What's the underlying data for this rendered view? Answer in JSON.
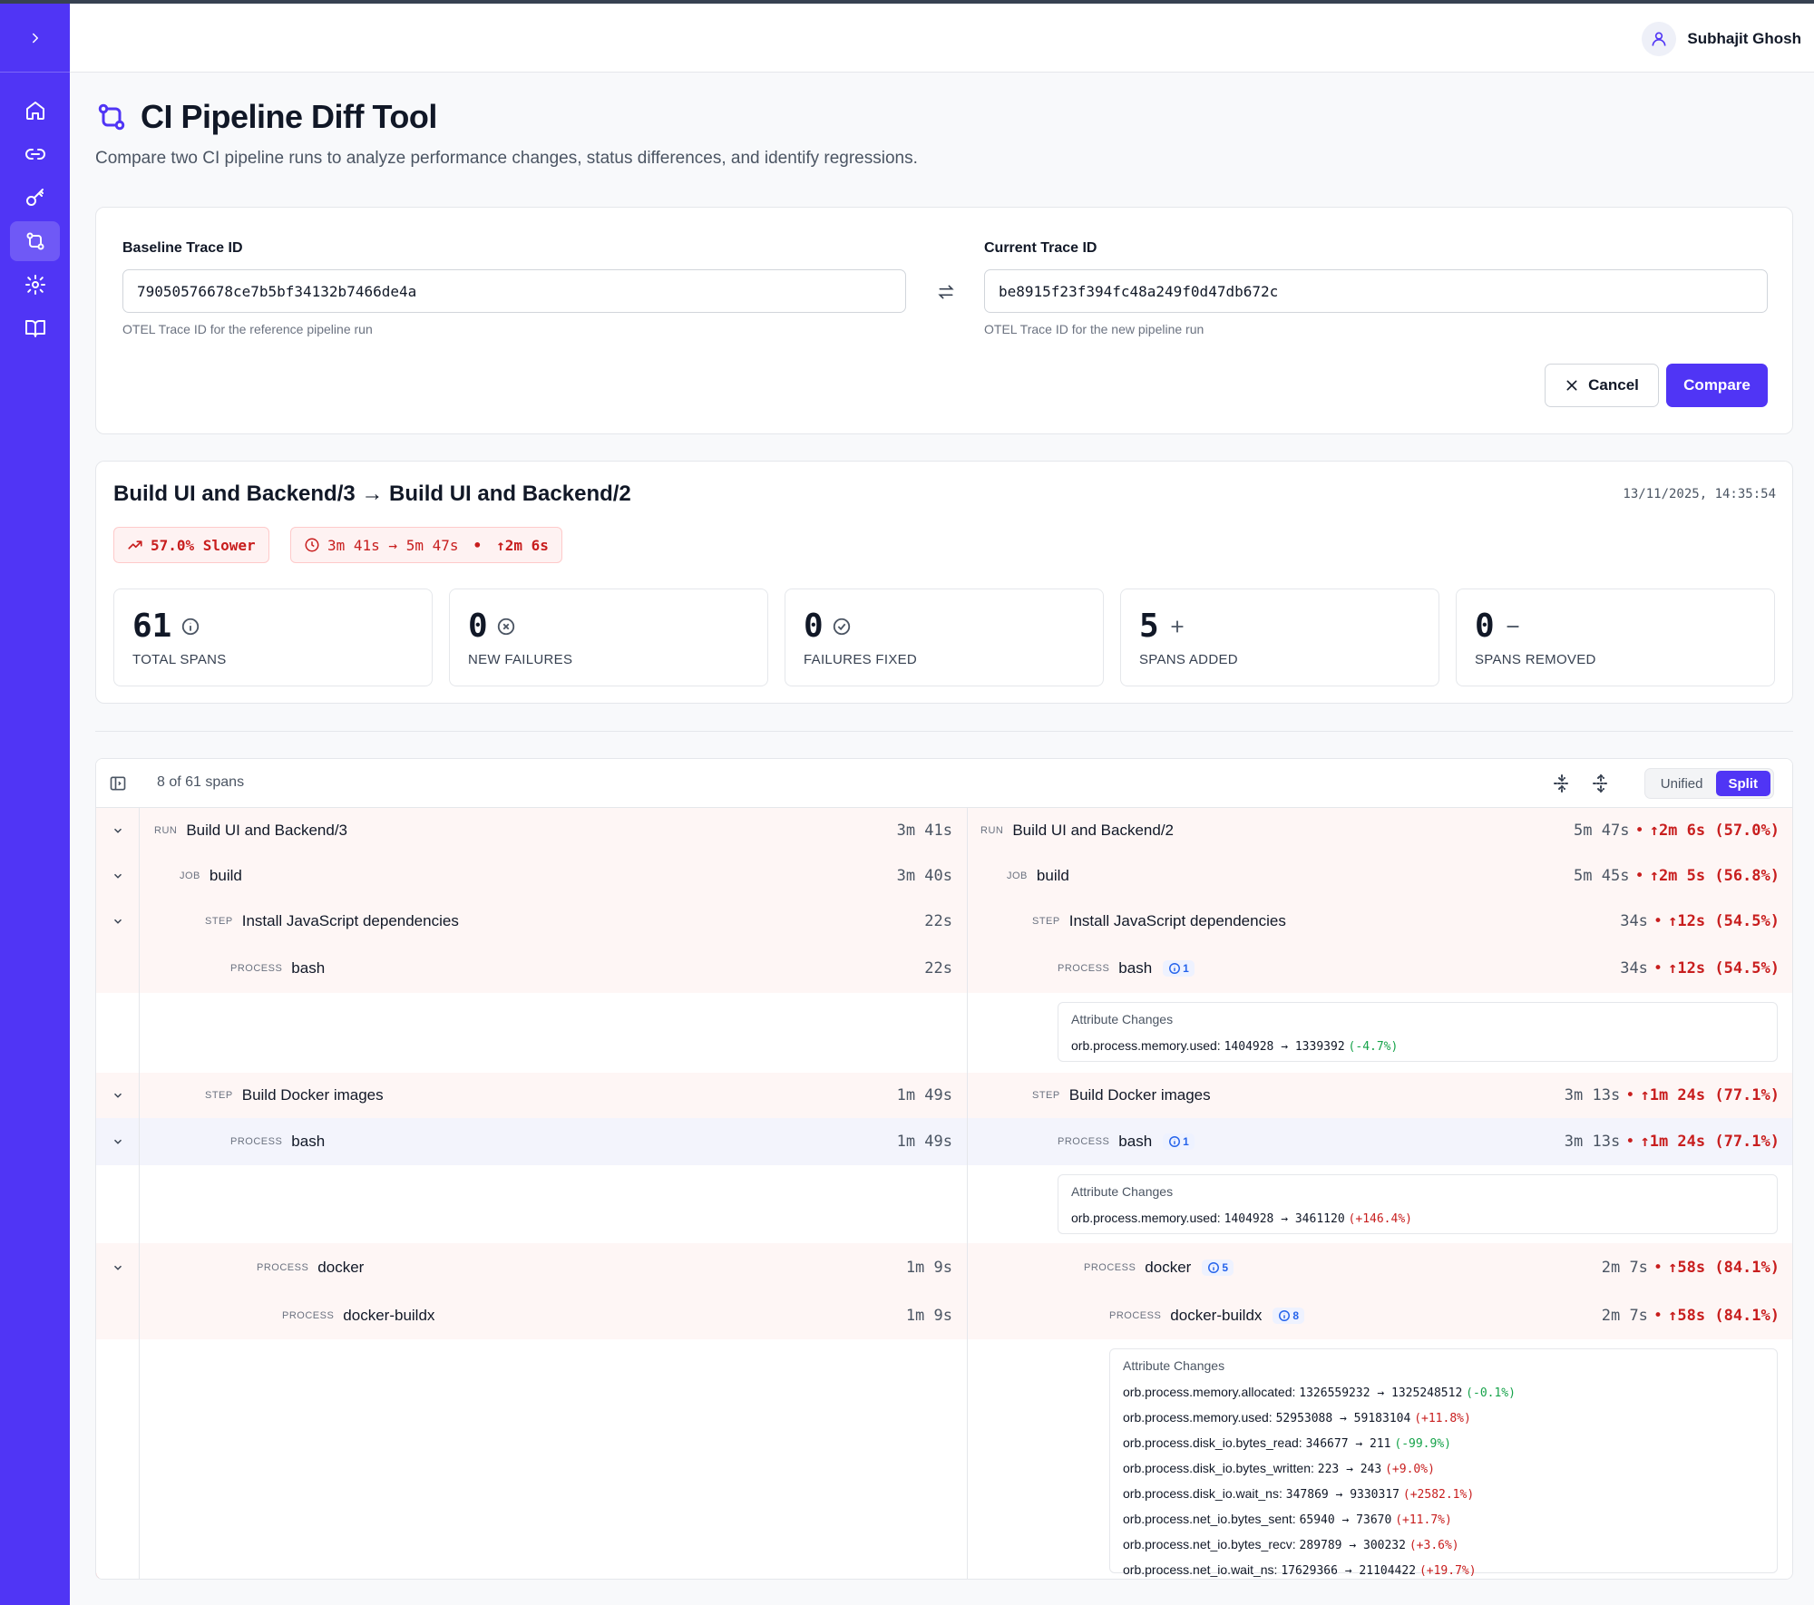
{
  "user": {
    "name": "Subhajit Ghosh"
  },
  "page": {
    "title": "CI Pipeline Diff Tool",
    "subtitle": "Compare two CI pipeline runs to analyze performance changes, status differences, and identify regressions."
  },
  "sidebar": {
    "items": [
      "home-icon",
      "link-icon",
      "key-icon",
      "git-compare-icon",
      "settings-icon",
      "book-icon"
    ],
    "active": "git-compare-icon"
  },
  "form": {
    "baseline_label": "Baseline Trace ID",
    "baseline_value": "79050576678ce7b5bf34132b7466de4a",
    "baseline_help": "OTEL Trace ID for the reference pipeline run",
    "current_label": "Current Trace ID",
    "current_value": "be8915f23f394fc48a249f0d47db672c",
    "current_help": "OTEL Trace ID for the new pipeline run",
    "cancel_label": "Cancel",
    "compare_label": "Compare"
  },
  "summary": {
    "title": "Build UI and Backend/3 → Build UI and Backend/2",
    "timestamp": "13/11/2025, 14:35:54",
    "slower_badge": "57.0% Slower",
    "duration_badge": "3m 41s → 5m 47s",
    "duration_sep": "•",
    "duration_delta": "↑2m 6s",
    "stats": [
      {
        "value": "61",
        "label": "TOTAL SPANS",
        "icon": "info-icon"
      },
      {
        "value": "0",
        "label": "NEW FAILURES",
        "icon": "x-circle-icon"
      },
      {
        "value": "0",
        "label": "FAILURES FIXED",
        "icon": "check-circle-icon"
      },
      {
        "value": "5",
        "label": "SPANS ADDED",
        "icon": "plus-icon"
      },
      {
        "value": "0",
        "label": "SPANS REMOVED",
        "icon": "minus-icon"
      }
    ]
  },
  "diff": {
    "span_count": "8 of 61 spans",
    "view_unified": "Unified",
    "view_split": "Split",
    "rows": [
      {
        "kind": "RUN",
        "left_name": "Build UI and Backend/3",
        "left_dur": "3m 41s",
        "right_name": "Build UI and Backend/2",
        "right_dur": "5m 47s",
        "delta": "↑2m 6s (57.0%)"
      },
      {
        "kind": "JOB",
        "left_name": "build",
        "left_dur": "3m 40s",
        "right_name": "build",
        "right_dur": "5m 45s",
        "delta": "↑2m 5s (56.8%)"
      },
      {
        "kind": "STEP",
        "left_name": "Install JavaScript dependencies",
        "left_dur": "22s",
        "right_name": "Install JavaScript dependencies",
        "right_dur": "34s",
        "delta": "↑12s (54.5%)"
      },
      {
        "kind": "PROCESS",
        "left_name": "bash",
        "left_dur": "22s",
        "right_name": "bash",
        "right_dur": "34s",
        "delta": "↑12s (54.5%)",
        "info": "1"
      },
      {
        "kind": "STEP",
        "left_name": "Build Docker images",
        "left_dur": "1m 49s",
        "right_name": "Build Docker images",
        "right_dur": "3m 13s",
        "delta": "↑1m 24s (77.1%)"
      },
      {
        "kind": "PROCESS",
        "left_name": "bash",
        "left_dur": "1m 49s",
        "right_name": "bash",
        "right_dur": "3m 13s",
        "delta": "↑1m 24s (77.1%)",
        "info": "1"
      },
      {
        "kind": "PROCESS",
        "left_name": "docker",
        "left_dur": "1m 9s",
        "right_name": "docker",
        "right_dur": "2m 7s",
        "delta": "↑58s (84.1%)",
        "info": "5"
      },
      {
        "kind": "PROCESS",
        "left_name": "docker-buildx",
        "left_dur": "1m 9s",
        "right_name": "docker-buildx",
        "right_dur": "2m 7s",
        "delta": "↑58s (84.1%)",
        "info": "8"
      }
    ],
    "attr_title": "Attribute Changes",
    "attr_blocks": [
      [
        {
          "key": "orb.process.memory.used:",
          "value": "1404928 → 1339392",
          "change": "(-4.7%)"
        }
      ],
      [
        {
          "key": "orb.process.memory.used:",
          "value": "1404928 → 3461120",
          "change": "(+146.4%)"
        }
      ],
      [
        {
          "key": "orb.process.memory.allocated:",
          "value": "1326559232 → 1325248512",
          "change": "(-0.1%)"
        },
        {
          "key": "orb.process.memory.used:",
          "value": "52953088 → 59183104",
          "change": "(+11.8%)"
        },
        {
          "key": "orb.process.disk_io.bytes_read:",
          "value": "346677 → 211",
          "change": "(-99.9%)"
        },
        {
          "key": "orb.process.disk_io.bytes_written:",
          "value": "223 → 243",
          "change": "(+9.0%)"
        },
        {
          "key": "orb.process.disk_io.wait_ns:",
          "value": "347869 → 9330317",
          "change": "(+2582.1%)"
        },
        {
          "key": "orb.process.net_io.bytes_sent:",
          "value": "65940 → 73670",
          "change": "(+11.7%)"
        },
        {
          "key": "orb.process.net_io.bytes_recv:",
          "value": "289789 → 300232",
          "change": "(+3.6%)"
        },
        {
          "key": "orb.process.net_io.wait_ns:",
          "value": "17629366 → 21104422",
          "change": "(+19.7%)"
        }
      ]
    ]
  },
  "colors": {
    "accent": "#5035f5",
    "regression": "#c81e1e",
    "improvement": "#16a34a"
  }
}
